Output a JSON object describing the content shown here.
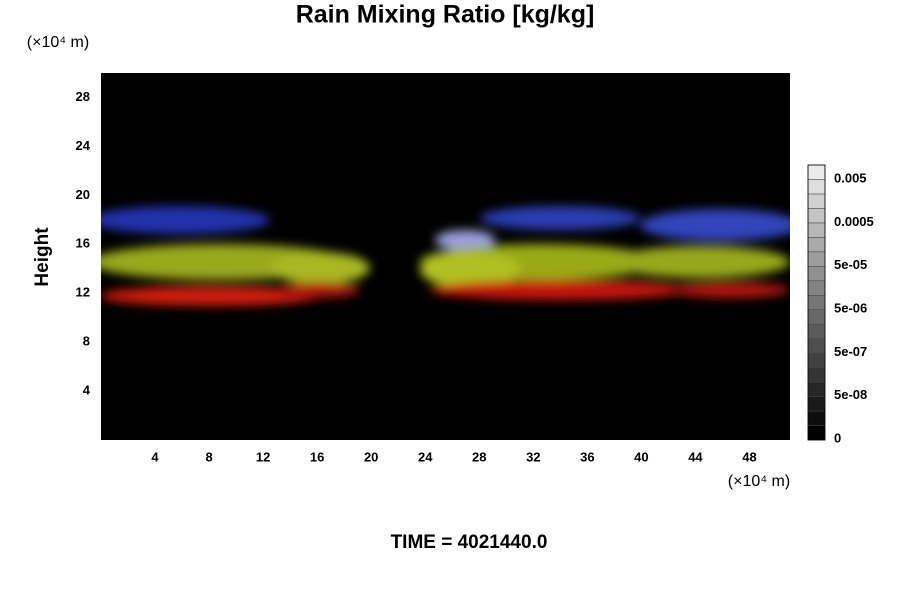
{
  "chart_data": {
    "type": "volume-render",
    "title": "Rain Mixing Ratio [kg/kg]",
    "y_label": "Height",
    "y_unit": "(×10⁴ m)",
    "x_unit": "(×10⁴ m)",
    "xlim": [
      0,
      51
    ],
    "xticks": [
      4,
      8,
      12,
      16,
      20,
      24,
      28,
      32,
      36,
      40,
      44,
      48
    ],
    "ylim": [
      0,
      30
    ],
    "yticks": [
      4,
      8,
      12,
      16,
      20,
      24,
      28
    ],
    "colorbar_ticks": [
      {
        "value": 0,
        "label": "0"
      },
      {
        "value": 5e-08,
        "label": "5e-08"
      },
      {
        "value": 5e-07,
        "label": "5e-07"
      },
      {
        "value": 5e-06,
        "label": "5e-06"
      },
      {
        "value": 5e-05,
        "label": "5e-05"
      },
      0.0005,
      0.005
    ],
    "footer": "TIME = 4021440.0"
  }
}
